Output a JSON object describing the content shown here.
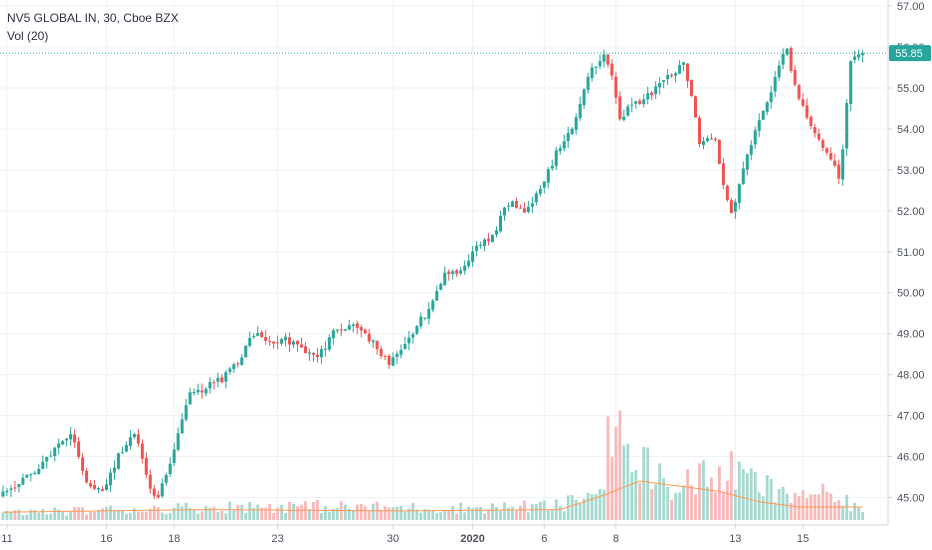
{
  "legend": {
    "title": "NV5 GLOBAL IN, 30, Cboe BZX",
    "indicator": "Vol (20)"
  },
  "current_price_label": "55.85",
  "colors": {
    "up": "#26a69a",
    "down": "#ef5350",
    "up_volume": "#a5d9cf",
    "down_volume": "#f7b9b8",
    "volume_ma": "#ff9850",
    "grid": "#eef0f4",
    "axis_text": "#4c525e",
    "price_line": "#26a69a"
  },
  "chart_data": {
    "type": "candlestick",
    "title": "NV5 GLOBAL IN, 30, Cboe BZX",
    "indicator": "Vol (20)",
    "ylim": [
      44.45,
      57.1
    ],
    "grid": true,
    "y_ticks": [
      "57.00",
      "56.00",
      "55.00",
      "54.00",
      "53.00",
      "52.00",
      "51.00",
      "50.00",
      "49.00",
      "48.00",
      "47.00",
      "46.00",
      "45.00"
    ],
    "y_tick_values": [
      57,
      56,
      55,
      54,
      53,
      52,
      51,
      50,
      49,
      48,
      47,
      46,
      45
    ],
    "x_ticks": [
      {
        "label": "11",
        "index": 1
      },
      {
        "label": "16",
        "index": 26
      },
      {
        "label": "18",
        "index": 43
      },
      {
        "label": "23",
        "index": 69
      },
      {
        "label": "30",
        "index": 98
      },
      {
        "label": "2020",
        "index": 118,
        "bold": true
      },
      {
        "label": "6",
        "index": 136
      },
      {
        "label": "8",
        "index": 154
      },
      {
        "label": "13",
        "index": 184
      },
      {
        "label": "15",
        "index": 201
      }
    ],
    "last_price": 55.85,
    "waypoints": [
      [
        0,
        45.0
      ],
      [
        10,
        45.7
      ],
      [
        18,
        46.6
      ],
      [
        22,
        45.3
      ],
      [
        26,
        45.1
      ],
      [
        30,
        46.0
      ],
      [
        34,
        46.6
      ],
      [
        38,
        45.2
      ],
      [
        40,
        45.0
      ],
      [
        44,
        46.2
      ],
      [
        48,
        47.5
      ],
      [
        52,
        47.7
      ],
      [
        56,
        47.9
      ],
      [
        60,
        48.3
      ],
      [
        64,
        49.0
      ],
      [
        68,
        48.8
      ],
      [
        72,
        48.9
      ],
      [
        76,
        48.6
      ],
      [
        80,
        48.4
      ],
      [
        84,
        49.0
      ],
      [
        88,
        49.2
      ],
      [
        92,
        49.0
      ],
      [
        96,
        48.5
      ],
      [
        98,
        48.3
      ],
      [
        102,
        48.8
      ],
      [
        108,
        49.6
      ],
      [
        112,
        50.4
      ],
      [
        116,
        50.5
      ],
      [
        120,
        51.2
      ],
      [
        124,
        51.4
      ],
      [
        128,
        52.2
      ],
      [
        132,
        52.0
      ],
      [
        136,
        52.5
      ],
      [
        140,
        53.4
      ],
      [
        144,
        54.0
      ],
      [
        148,
        55.3
      ],
      [
        152,
        55.8
      ],
      [
        154,
        55.3
      ],
      [
        156,
        54.2
      ],
      [
        158,
        54.5
      ],
      [
        162,
        54.7
      ],
      [
        166,
        55.1
      ],
      [
        170,
        55.4
      ],
      [
        172,
        55.6
      ],
      [
        174,
        54.8
      ],
      [
        176,
        53.6
      ],
      [
        180,
        53.8
      ],
      [
        182,
        52.6
      ],
      [
        184,
        51.9
      ],
      [
        188,
        53.4
      ],
      [
        192,
        54.4
      ],
      [
        196,
        55.5
      ],
      [
        198,
        56.0
      ],
      [
        200,
        55.0
      ],
      [
        204,
        54.0
      ],
      [
        208,
        53.5
      ],
      [
        211,
        52.8
      ],
      [
        212,
        53.5
      ],
      [
        214,
        55.6
      ],
      [
        216,
        55.85
      ]
    ],
    "volume_waypoints": [
      [
        0,
        0.06
      ],
      [
        40,
        0.1
      ],
      [
        70,
        0.12
      ],
      [
        110,
        0.1
      ],
      [
        140,
        0.12
      ],
      [
        150,
        0.25
      ],
      [
        152,
        0.75
      ],
      [
        154,
        0.95
      ],
      [
        158,
        0.3
      ],
      [
        160,
        0.55
      ],
      [
        166,
        0.3
      ],
      [
        176,
        0.35
      ],
      [
        184,
        0.4
      ],
      [
        196,
        0.2
      ],
      [
        202,
        0.25
      ],
      [
        216,
        0.1
      ]
    ],
    "volume_ma_waypoints": [
      [
        0,
        0.06
      ],
      [
        50,
        0.08
      ],
      [
        100,
        0.07
      ],
      [
        140,
        0.08
      ],
      [
        150,
        0.18
      ],
      [
        160,
        0.3
      ],
      [
        170,
        0.26
      ],
      [
        180,
        0.22
      ],
      [
        190,
        0.14
      ],
      [
        200,
        0.1
      ],
      [
        216,
        0.1
      ]
    ],
    "n_bars": 217
  }
}
